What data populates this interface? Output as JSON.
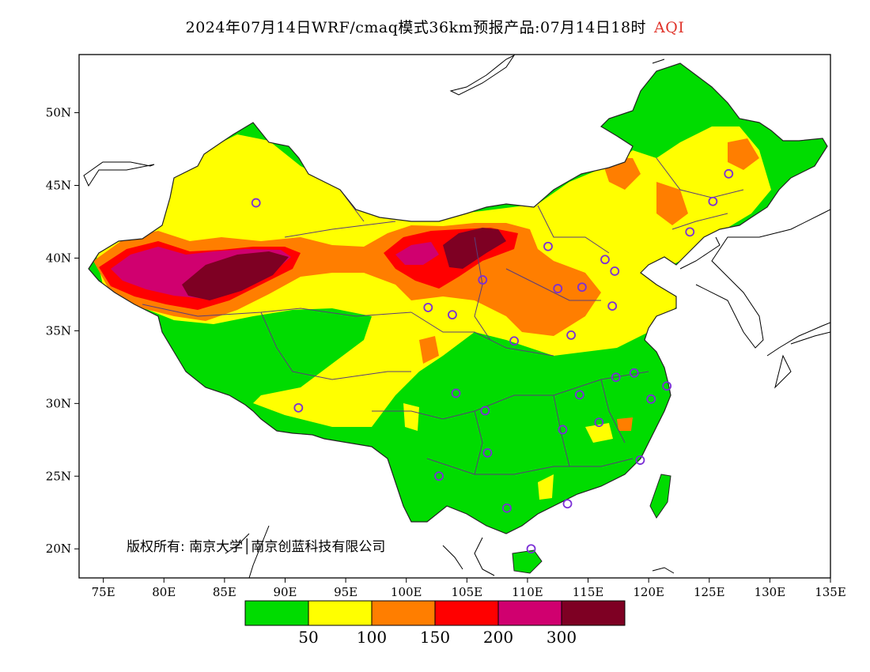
{
  "title": {
    "text": "2024年07月14日WRF/cmaq模式36km预报产品:07月14日18时",
    "variable": "AQI"
  },
  "map": {
    "lon_range": [
      73,
      135
    ],
    "lat_range": [
      18,
      54
    ],
    "lon_ticks": [
      "75E",
      "80E",
      "85E",
      "90E",
      "95E",
      "100E",
      "105E",
      "110E",
      "115E",
      "120E",
      "125E",
      "130E",
      "135E"
    ],
    "lat_ticks": [
      "20N",
      "25N",
      "30N",
      "35N",
      "40N",
      "45N",
      "50N"
    ],
    "copyright": "版权所有: 南京大学│南京创蓝科技有限公司",
    "station_marker_color": "#7b2fd6",
    "stations": [
      {
        "lon": 87.6,
        "lat": 43.8
      },
      {
        "lon": 91.1,
        "lat": 29.7
      },
      {
        "lon": 101.8,
        "lat": 36.6
      },
      {
        "lon": 103.8,
        "lat": 36.1
      },
      {
        "lon": 106.3,
        "lat": 38.5
      },
      {
        "lon": 111.7,
        "lat": 40.8
      },
      {
        "lon": 112.5,
        "lat": 37.9
      },
      {
        "lon": 114.5,
        "lat": 38.0
      },
      {
        "lon": 116.4,
        "lat": 39.9
      },
      {
        "lon": 117.2,
        "lat": 39.1
      },
      {
        "lon": 117.0,
        "lat": 36.7
      },
      {
        "lon": 113.6,
        "lat": 34.7
      },
      {
        "lon": 108.9,
        "lat": 34.3
      },
      {
        "lon": 104.1,
        "lat": 30.7
      },
      {
        "lon": 106.5,
        "lat": 29.5
      },
      {
        "lon": 106.7,
        "lat": 26.6
      },
      {
        "lon": 102.7,
        "lat": 25.0
      },
      {
        "lon": 108.3,
        "lat": 22.8
      },
      {
        "lon": 113.3,
        "lat": 23.1
      },
      {
        "lon": 110.3,
        "lat": 20.0
      },
      {
        "lon": 112.9,
        "lat": 28.2
      },
      {
        "lon": 114.3,
        "lat": 30.6
      },
      {
        "lon": 115.9,
        "lat": 28.7
      },
      {
        "lon": 117.3,
        "lat": 31.8
      },
      {
        "lon": 118.8,
        "lat": 32.1
      },
      {
        "lon": 121.5,
        "lat": 31.2
      },
      {
        "lon": 120.2,
        "lat": 30.3
      },
      {
        "lon": 119.3,
        "lat": 26.1
      },
      {
        "lon": 123.4,
        "lat": 41.8
      },
      {
        "lon": 125.3,
        "lat": 43.9
      },
      {
        "lon": 126.6,
        "lat": 45.8
      }
    ]
  },
  "legend": {
    "colors": [
      "#00dc00",
      "#ffff00",
      "#ff7e00",
      "#ff0000",
      "#d0006f",
      "#7e0023"
    ],
    "labels": [
      "50",
      "100",
      "150",
      "200",
      "300"
    ]
  }
}
